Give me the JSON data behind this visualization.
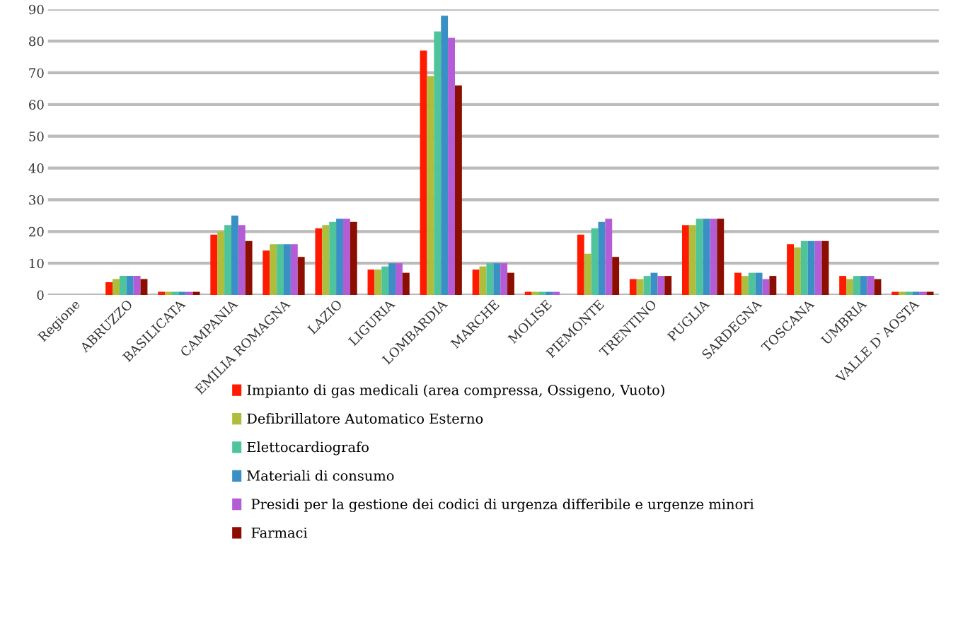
{
  "chart_data": {
    "type": "bar",
    "categories": [
      "Regione",
      "ABRUZZO",
      "BASILICATA",
      "CAMPANIA",
      "EMILIA ROMAGNA",
      "LAZIO",
      "LIGURIA",
      "LOMBARDIA",
      "MARCHE",
      "MOLISE",
      "PIEMONTE",
      "TRENTINO",
      "PUGLIA",
      "SARDEGNA",
      "TOSCANA",
      "UMBRIA",
      "VALLE D`AOSTA"
    ],
    "series": [
      {
        "name": "Impianto di gas medicali (area compressa, Ossigeno, Vuoto)",
        "color": "#ff1a00",
        "values": [
          0,
          4,
          1,
          19,
          14,
          21,
          8,
          77,
          8,
          1,
          19,
          5,
          22,
          7,
          16,
          6,
          1
        ]
      },
      {
        "name": "Defibrillatore Automatico Esterno",
        "color": "#aebd3c",
        "values": [
          0,
          5,
          1,
          20,
          16,
          22,
          8,
          69,
          9,
          1,
          13,
          5,
          22,
          6,
          15,
          5,
          1
        ]
      },
      {
        "name": "Elettocardiografo",
        "color": "#4fc49b",
        "values": [
          0,
          6,
          1,
          22,
          16,
          23,
          9,
          83,
          10,
          1,
          21,
          6,
          24,
          7,
          17,
          6,
          1
        ]
      },
      {
        "name": "Materiali di consumo",
        "color": "#3a8fc4",
        "values": [
          0,
          6,
          1,
          25,
          16,
          24,
          10,
          88,
          10,
          1,
          23,
          7,
          24,
          7,
          17,
          6,
          1
        ]
      },
      {
        "name": " Presidi per la gestione dei codici di urgenza differibile e urgenze minori",
        "color": "#b35cd6",
        "values": [
          0,
          6,
          1,
          22,
          16,
          24,
          10,
          81,
          10,
          1,
          24,
          6,
          24,
          5,
          17,
          6,
          1
        ]
      },
      {
        "name": " Farmaci",
        "color": "#8b0e00",
        "values": [
          0,
          5,
          1,
          17,
          12,
          23,
          7,
          66,
          7,
          0,
          12,
          6,
          24,
          6,
          17,
          5,
          1
        ]
      }
    ],
    "ylim": [
      0,
      90
    ],
    "yticks": [
      0,
      10,
      20,
      30,
      40,
      50,
      60,
      70,
      80,
      90
    ],
    "grid": "y",
    "legend": "bottom"
  }
}
